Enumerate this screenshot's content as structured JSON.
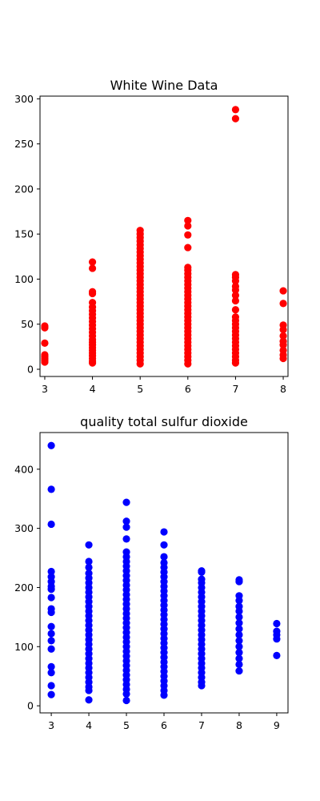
{
  "chart_data": [
    {
      "type": "scatter",
      "title": "White Wine Data",
      "xlabel": "",
      "ylabel": "",
      "xlim": [
        2.9,
        8.1
      ],
      "ylim": [
        -8,
        303
      ],
      "xticks": [
        3,
        4,
        5,
        6,
        7,
        8
      ],
      "yticks": [
        0,
        50,
        100,
        150,
        200,
        250,
        300
      ],
      "color": "#ff0000",
      "grid": false,
      "points": [
        [
          3,
          8
        ],
        [
          3,
          10
        ],
        [
          3,
          12
        ],
        [
          3,
          14
        ],
        [
          3,
          16
        ],
        [
          3,
          29
        ],
        [
          3,
          46
        ],
        [
          3,
          48
        ],
        [
          4,
          7
        ],
        [
          4,
          9
        ],
        [
          4,
          12
        ],
        [
          4,
          15
        ],
        [
          4,
          18
        ],
        [
          4,
          21
        ],
        [
          4,
          24
        ],
        [
          4,
          27
        ],
        [
          4,
          30
        ],
        [
          4,
          33
        ],
        [
          4,
          37
        ],
        [
          4,
          41
        ],
        [
          4,
          45
        ],
        [
          4,
          49
        ],
        [
          4,
          53
        ],
        [
          4,
          57
        ],
        [
          4,
          61
        ],
        [
          4,
          65
        ],
        [
          4,
          69
        ],
        [
          4,
          74
        ],
        [
          4,
          84
        ],
        [
          4,
          86
        ],
        [
          4,
          112
        ],
        [
          4,
          119
        ],
        [
          5,
          6
        ],
        [
          5,
          10
        ],
        [
          5,
          14
        ],
        [
          5,
          18
        ],
        [
          5,
          22
        ],
        [
          5,
          26
        ],
        [
          5,
          30
        ],
        [
          5,
          34
        ],
        [
          5,
          38
        ],
        [
          5,
          42
        ],
        [
          5,
          46
        ],
        [
          5,
          50
        ],
        [
          5,
          54
        ],
        [
          5,
          58
        ],
        [
          5,
          62
        ],
        [
          5,
          66
        ],
        [
          5,
          70
        ],
        [
          5,
          74
        ],
        [
          5,
          78
        ],
        [
          5,
          82
        ],
        [
          5,
          86
        ],
        [
          5,
          90
        ],
        [
          5,
          94
        ],
        [
          5,
          98
        ],
        [
          5,
          102
        ],
        [
          5,
          106
        ],
        [
          5,
          110
        ],
        [
          5,
          114
        ],
        [
          5,
          118
        ],
        [
          5,
          122
        ],
        [
          5,
          126
        ],
        [
          5,
          130
        ],
        [
          5,
          134
        ],
        [
          5,
          138
        ],
        [
          5,
          142
        ],
        [
          5,
          146
        ],
        [
          5,
          150
        ],
        [
          5,
          154
        ],
        [
          6,
          6
        ],
        [
          6,
          10
        ],
        [
          6,
          14
        ],
        [
          6,
          18
        ],
        [
          6,
          22
        ],
        [
          6,
          26
        ],
        [
          6,
          30
        ],
        [
          6,
          34
        ],
        [
          6,
          38
        ],
        [
          6,
          42
        ],
        [
          6,
          46
        ],
        [
          6,
          50
        ],
        [
          6,
          54
        ],
        [
          6,
          58
        ],
        [
          6,
          62
        ],
        [
          6,
          66
        ],
        [
          6,
          70
        ],
        [
          6,
          74
        ],
        [
          6,
          78
        ],
        [
          6,
          82
        ],
        [
          6,
          86
        ],
        [
          6,
          90
        ],
        [
          6,
          94
        ],
        [
          6,
          98
        ],
        [
          6,
          102
        ],
        [
          6,
          106
        ],
        [
          6,
          110
        ],
        [
          6,
          113
        ],
        [
          6,
          135
        ],
        [
          6,
          149
        ],
        [
          6,
          159
        ],
        [
          6,
          165
        ],
        [
          7,
          7
        ],
        [
          7,
          10
        ],
        [
          7,
          14
        ],
        [
          7,
          18
        ],
        [
          7,
          22
        ],
        [
          7,
          26
        ],
        [
          7,
          30
        ],
        [
          7,
          34
        ],
        [
          7,
          38
        ],
        [
          7,
          42
        ],
        [
          7,
          46
        ],
        [
          7,
          50
        ],
        [
          7,
          54
        ],
        [
          7,
          58
        ],
        [
          7,
          66
        ],
        [
          7,
          76
        ],
        [
          7,
          82
        ],
        [
          7,
          88
        ],
        [
          7,
          92
        ],
        [
          7,
          98
        ],
        [
          7,
          102
        ],
        [
          7,
          105
        ],
        [
          7,
          278
        ],
        [
          7,
          288
        ],
        [
          8,
          12
        ],
        [
          8,
          16
        ],
        [
          8,
          21
        ],
        [
          8,
          27
        ],
        [
          8,
          31
        ],
        [
          8,
          37
        ],
        [
          8,
          44
        ],
        [
          8,
          49
        ],
        [
          8,
          73
        ],
        [
          8,
          87
        ]
      ]
    },
    {
      "type": "scatter",
      "title": "quality total sulfur dioxide",
      "xlabel": "",
      "ylabel": "",
      "xlim": [
        2.7,
        9.3
      ],
      "ylim": [
        -12,
        462
      ],
      "xticks": [
        3,
        4,
        5,
        6,
        7,
        8,
        9
      ],
      "yticks": [
        0,
        100,
        200,
        300,
        400
      ],
      "color": "#0000ff",
      "grid": false,
      "points": [
        [
          3,
          19
        ],
        [
          3,
          34
        ],
        [
          3,
          56
        ],
        [
          3,
          66
        ],
        [
          3,
          96
        ],
        [
          3,
          110
        ],
        [
          3,
          122
        ],
        [
          3,
          134
        ],
        [
          3,
          158
        ],
        [
          3,
          164
        ],
        [
          3,
          183
        ],
        [
          3,
          197
        ],
        [
          3,
          202
        ],
        [
          3,
          210
        ],
        [
          3,
          218
        ],
        [
          3,
          227
        ],
        [
          3,
          307
        ],
        [
          3,
          366
        ],
        [
          3,
          440
        ],
        [
          4,
          10
        ],
        [
          4,
          26
        ],
        [
          4,
          32
        ],
        [
          4,
          40
        ],
        [
          4,
          48
        ],
        [
          4,
          56
        ],
        [
          4,
          64
        ],
        [
          4,
          72
        ],
        [
          4,
          80
        ],
        [
          4,
          88
        ],
        [
          4,
          96
        ],
        [
          4,
          104
        ],
        [
          4,
          112
        ],
        [
          4,
          120
        ],
        [
          4,
          128
        ],
        [
          4,
          136
        ],
        [
          4,
          144
        ],
        [
          4,
          152
        ],
        [
          4,
          160
        ],
        [
          4,
          168
        ],
        [
          4,
          176
        ],
        [
          4,
          184
        ],
        [
          4,
          192
        ],
        [
          4,
          200
        ],
        [
          4,
          208
        ],
        [
          4,
          216
        ],
        [
          4,
          224
        ],
        [
          4,
          234
        ],
        [
          4,
          244
        ],
        [
          4,
          272
        ],
        [
          5,
          9
        ],
        [
          5,
          20
        ],
        [
          5,
          28
        ],
        [
          5,
          36
        ],
        [
          5,
          44
        ],
        [
          5,
          52
        ],
        [
          5,
          60
        ],
        [
          5,
          68
        ],
        [
          5,
          76
        ],
        [
          5,
          84
        ],
        [
          5,
          92
        ],
        [
          5,
          100
        ],
        [
          5,
          108
        ],
        [
          5,
          116
        ],
        [
          5,
          124
        ],
        [
          5,
          132
        ],
        [
          5,
          140
        ],
        [
          5,
          148
        ],
        [
          5,
          156
        ],
        [
          5,
          164
        ],
        [
          5,
          172
        ],
        [
          5,
          180
        ],
        [
          5,
          188
        ],
        [
          5,
          196
        ],
        [
          5,
          204
        ],
        [
          5,
          212
        ],
        [
          5,
          220
        ],
        [
          5,
          228
        ],
        [
          5,
          236
        ],
        [
          5,
          244
        ],
        [
          5,
          252
        ],
        [
          5,
          260
        ],
        [
          5,
          282
        ],
        [
          5,
          302
        ],
        [
          5,
          312
        ],
        [
          5,
          344
        ],
        [
          6,
          18
        ],
        [
          6,
          26
        ],
        [
          6,
          34
        ],
        [
          6,
          42
        ],
        [
          6,
          50
        ],
        [
          6,
          58
        ],
        [
          6,
          66
        ],
        [
          6,
          74
        ],
        [
          6,
          82
        ],
        [
          6,
          90
        ],
        [
          6,
          98
        ],
        [
          6,
          106
        ],
        [
          6,
          114
        ],
        [
          6,
          122
        ],
        [
          6,
          130
        ],
        [
          6,
          138
        ],
        [
          6,
          146
        ],
        [
          6,
          154
        ],
        [
          6,
          162
        ],
        [
          6,
          170
        ],
        [
          6,
          178
        ],
        [
          6,
          186
        ],
        [
          6,
          194
        ],
        [
          6,
          202
        ],
        [
          6,
          210
        ],
        [
          6,
          218
        ],
        [
          6,
          226
        ],
        [
          6,
          234
        ],
        [
          6,
          242
        ],
        [
          6,
          252
        ],
        [
          6,
          272
        ],
        [
          6,
          294
        ],
        [
          7,
          34
        ],
        [
          7,
          40
        ],
        [
          7,
          48
        ],
        [
          7,
          56
        ],
        [
          7,
          64
        ],
        [
          7,
          72
        ],
        [
          7,
          80
        ],
        [
          7,
          88
        ],
        [
          7,
          96
        ],
        [
          7,
          104
        ],
        [
          7,
          112
        ],
        [
          7,
          120
        ],
        [
          7,
          128
        ],
        [
          7,
          136
        ],
        [
          7,
          144
        ],
        [
          7,
          152
        ],
        [
          7,
          160
        ],
        [
          7,
          168
        ],
        [
          7,
          176
        ],
        [
          7,
          184
        ],
        [
          7,
          192
        ],
        [
          7,
          200
        ],
        [
          7,
          208
        ],
        [
          7,
          214
        ],
        [
          7,
          226
        ],
        [
          7,
          228
        ],
        [
          8,
          59
        ],
        [
          8,
          70
        ],
        [
          8,
          80
        ],
        [
          8,
          90
        ],
        [
          8,
          100
        ],
        [
          8,
          110
        ],
        [
          8,
          120
        ],
        [
          8,
          130
        ],
        [
          8,
          140
        ],
        [
          8,
          150
        ],
        [
          8,
          160
        ],
        [
          8,
          168
        ],
        [
          8,
          178
        ],
        [
          8,
          186
        ],
        [
          8,
          210
        ],
        [
          8,
          213
        ],
        [
          9,
          85
        ],
        [
          9,
          113
        ],
        [
          9,
          120
        ],
        [
          9,
          126
        ],
        [
          9,
          139
        ]
      ]
    }
  ]
}
